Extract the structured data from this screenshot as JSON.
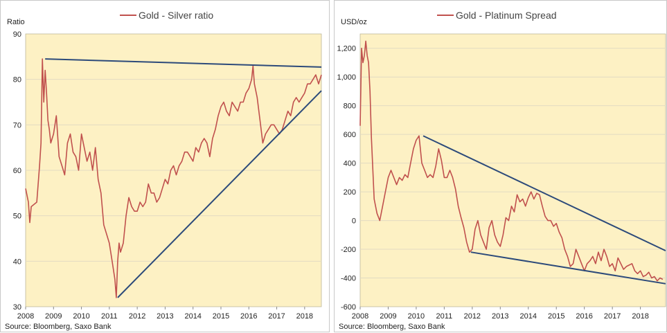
{
  "colors": {
    "plot_background": "#fdf1c4",
    "series_line": "#c0504d",
    "trend_line": "#2c4a7a",
    "grid_line": "#e2dbc2"
  },
  "chart_data": [
    {
      "type": "line",
      "title": "Gold - Silver ratio",
      "ylabel": "Ratio",
      "xlabel": "",
      "source": "Source: Bloomberg, Saxo Bank",
      "xlim": [
        2008.0,
        2018.6
      ],
      "ylim": [
        30,
        90
      ],
      "y_ticks": [
        30,
        40,
        50,
        60,
        70,
        80,
        90
      ],
      "y_tick_labels": [
        "30",
        "40",
        "50",
        "60",
        "70",
        "80",
        "90"
      ],
      "x_ticks": [
        2008,
        2009,
        2010,
        2011,
        2012,
        2013,
        2014,
        2015,
        2016,
        2017,
        2018
      ],
      "x_tick_labels": [
        "2008",
        "2009",
        "2010",
        "2011",
        "2012",
        "2013",
        "2014",
        "2015",
        "2016",
        "2017",
        "2018"
      ],
      "grid": "horizontal",
      "legend": "top-center",
      "series": [
        {
          "name": "Gold - Silver ratio",
          "x": [
            2008.0,
            2008.1,
            2008.15,
            2008.2,
            2008.3,
            2008.4,
            2008.5,
            2008.55,
            2008.6,
            2008.65,
            2008.7,
            2008.75,
            2008.8,
            2008.85,
            2008.9,
            2009.0,
            2009.1,
            2009.2,
            2009.3,
            2009.4,
            2009.5,
            2009.6,
            2009.7,
            2009.8,
            2009.9,
            2010.0,
            2010.1,
            2010.2,
            2010.3,
            2010.4,
            2010.5,
            2010.6,
            2010.7,
            2010.8,
            2010.9,
            2011.0,
            2011.1,
            2011.2,
            2011.25,
            2011.3,
            2011.35,
            2011.4,
            2011.5,
            2011.6,
            2011.7,
            2011.8,
            2011.9,
            2012.0,
            2012.1,
            2012.2,
            2012.3,
            2012.4,
            2012.5,
            2012.6,
            2012.7,
            2012.8,
            2012.9,
            2013.0,
            2013.1,
            2013.2,
            2013.3,
            2013.4,
            2013.5,
            2013.6,
            2013.7,
            2013.8,
            2013.9,
            2014.0,
            2014.1,
            2014.2,
            2014.3,
            2014.4,
            2014.5,
            2014.6,
            2014.7,
            2014.8,
            2014.9,
            2015.0,
            2015.1,
            2015.2,
            2015.3,
            2015.4,
            2015.5,
            2015.6,
            2015.7,
            2015.8,
            2015.9,
            2016.0,
            2016.1,
            2016.15,
            2016.2,
            2016.3,
            2016.4,
            2016.5,
            2016.6,
            2016.7,
            2016.8,
            2016.9,
            2017.0,
            2017.1,
            2017.2,
            2017.3,
            2017.4,
            2017.5,
            2017.6,
            2017.7,
            2017.8,
            2017.9,
            2018.0,
            2018.1,
            2018.2,
            2018.3,
            2018.4,
            2018.5,
            2018.6
          ],
          "y": [
            56,
            53,
            48.5,
            52,
            52.5,
            53,
            61,
            66,
            84.5,
            75,
            82,
            77,
            71,
            69,
            66,
            68,
            72,
            63,
            61,
            59,
            66,
            68,
            64,
            63,
            60,
            68,
            65,
            62,
            64,
            60,
            65,
            58,
            55,
            48,
            46,
            44,
            40,
            36,
            32,
            40,
            44,
            42,
            44,
            50,
            54,
            52,
            51,
            51,
            53,
            52,
            53,
            57,
            55,
            55,
            53,
            54,
            56,
            58,
            57,
            60,
            61,
            59,
            61,
            62,
            64,
            64,
            63,
            62,
            65,
            64,
            66,
            67,
            66,
            63,
            67,
            69,
            72,
            74,
            75,
            73,
            72,
            75,
            74,
            73,
            75,
            75,
            77,
            78,
            80,
            83,
            79,
            76,
            71,
            66,
            68,
            69,
            70,
            70,
            69,
            68,
            69,
            71,
            73,
            72,
            75,
            76,
            75,
            76,
            77,
            79,
            79,
            80,
            81,
            79,
            81
          ]
        }
      ],
      "trend_lines": [
        {
          "x": [
            2008.7,
            2018.6
          ],
          "y": [
            84.5,
            82.7
          ]
        },
        {
          "x": [
            2011.3,
            2018.6
          ],
          "y": [
            32,
            77.5
          ]
        }
      ]
    },
    {
      "type": "line",
      "title": "Gold - Platinum Spread",
      "ylabel": "USD/oz",
      "xlabel": "",
      "source": "Source: Bloomberg, Saxo Bank",
      "xlim": [
        2008.0,
        2018.9
      ],
      "ylim": [
        -600,
        1300
      ],
      "y_ticks": [
        -600,
        -400,
        -200,
        0,
        200,
        400,
        600,
        800,
        1000,
        1200
      ],
      "y_tick_labels": [
        "-600",
        "-400",
        "-200",
        "0",
        "200",
        "400",
        "600",
        "800",
        "1,000",
        "1,200"
      ],
      "x_ticks": [
        2008,
        2009,
        2010,
        2011,
        2012,
        2013,
        2014,
        2015,
        2016,
        2017,
        2018
      ],
      "x_tick_labels": [
        "2008",
        "2009",
        "2010",
        "2011",
        "2012",
        "2013",
        "2014",
        "2015",
        "2016",
        "2017",
        "2018"
      ],
      "grid": "horizontal",
      "legend": "top-center",
      "series": [
        {
          "name": "Gold - Platinum Spread",
          "x": [
            2008.0,
            2008.05,
            2008.1,
            2008.15,
            2008.2,
            2008.25,
            2008.3,
            2008.35,
            2008.4,
            2008.5,
            2008.6,
            2008.7,
            2008.8,
            2008.9,
            2009.0,
            2009.1,
            2009.2,
            2009.3,
            2009.4,
            2009.5,
            2009.6,
            2009.7,
            2009.8,
            2009.9,
            2010.0,
            2010.1,
            2010.2,
            2010.3,
            2010.4,
            2010.5,
            2010.6,
            2010.7,
            2010.8,
            2010.9,
            2011.0,
            2011.1,
            2011.2,
            2011.3,
            2011.4,
            2011.5,
            2011.6,
            2011.7,
            2011.8,
            2011.9,
            2012.0,
            2012.1,
            2012.2,
            2012.3,
            2012.4,
            2012.5,
            2012.6,
            2012.7,
            2012.8,
            2012.9,
            2013.0,
            2013.1,
            2013.2,
            2013.3,
            2013.4,
            2013.5,
            2013.6,
            2013.7,
            2013.8,
            2013.9,
            2014.0,
            2014.1,
            2014.2,
            2014.3,
            2014.4,
            2014.5,
            2014.6,
            2014.7,
            2014.8,
            2014.9,
            2015.0,
            2015.1,
            2015.2,
            2015.3,
            2015.4,
            2015.5,
            2015.6,
            2015.7,
            2015.8,
            2015.9,
            2016.0,
            2016.1,
            2016.2,
            2016.3,
            2016.4,
            2016.5,
            2016.6,
            2016.7,
            2016.8,
            2016.9,
            2017.0,
            2017.1,
            2017.2,
            2017.3,
            2017.4,
            2017.5,
            2017.6,
            2017.7,
            2017.8,
            2017.9,
            2018.0,
            2018.1,
            2018.2,
            2018.3,
            2018.4,
            2018.5,
            2018.6,
            2018.7,
            2018.8
          ],
          "y": [
            660,
            1200,
            1100,
            1150,
            1250,
            1150,
            1100,
            900,
            580,
            150,
            50,
            0,
            100,
            200,
            300,
            350,
            300,
            250,
            300,
            280,
            320,
            300,
            400,
            500,
            560,
            590,
            400,
            350,
            300,
            320,
            300,
            380,
            500,
            420,
            300,
            300,
            350,
            300,
            220,
            100,
            20,
            -50,
            -150,
            -220,
            -200,
            -60,
            0,
            -100,
            -150,
            -200,
            -50,
            0,
            -100,
            -150,
            -180,
            -100,
            20,
            0,
            100,
            60,
            180,
            130,
            150,
            100,
            160,
            200,
            150,
            190,
            180,
            100,
            30,
            0,
            0,
            -40,
            -20,
            -80,
            -120,
            -200,
            -250,
            -320,
            -300,
            -200,
            -250,
            -300,
            -350,
            -300,
            -280,
            -250,
            -300,
            -220,
            -280,
            -200,
            -250,
            -320,
            -300,
            -350,
            -260,
            -300,
            -340,
            -320,
            -310,
            -300,
            -350,
            -370,
            -350,
            -390,
            -380,
            -360,
            -400,
            -390,
            -420,
            -400,
            -410
          ]
        }
      ],
      "trend_lines": [
        {
          "x": [
            2010.25,
            2018.9
          ],
          "y": [
            590,
            -210
          ]
        },
        {
          "x": [
            2011.95,
            2018.9
          ],
          "y": [
            -220,
            -440
          ]
        }
      ]
    }
  ]
}
